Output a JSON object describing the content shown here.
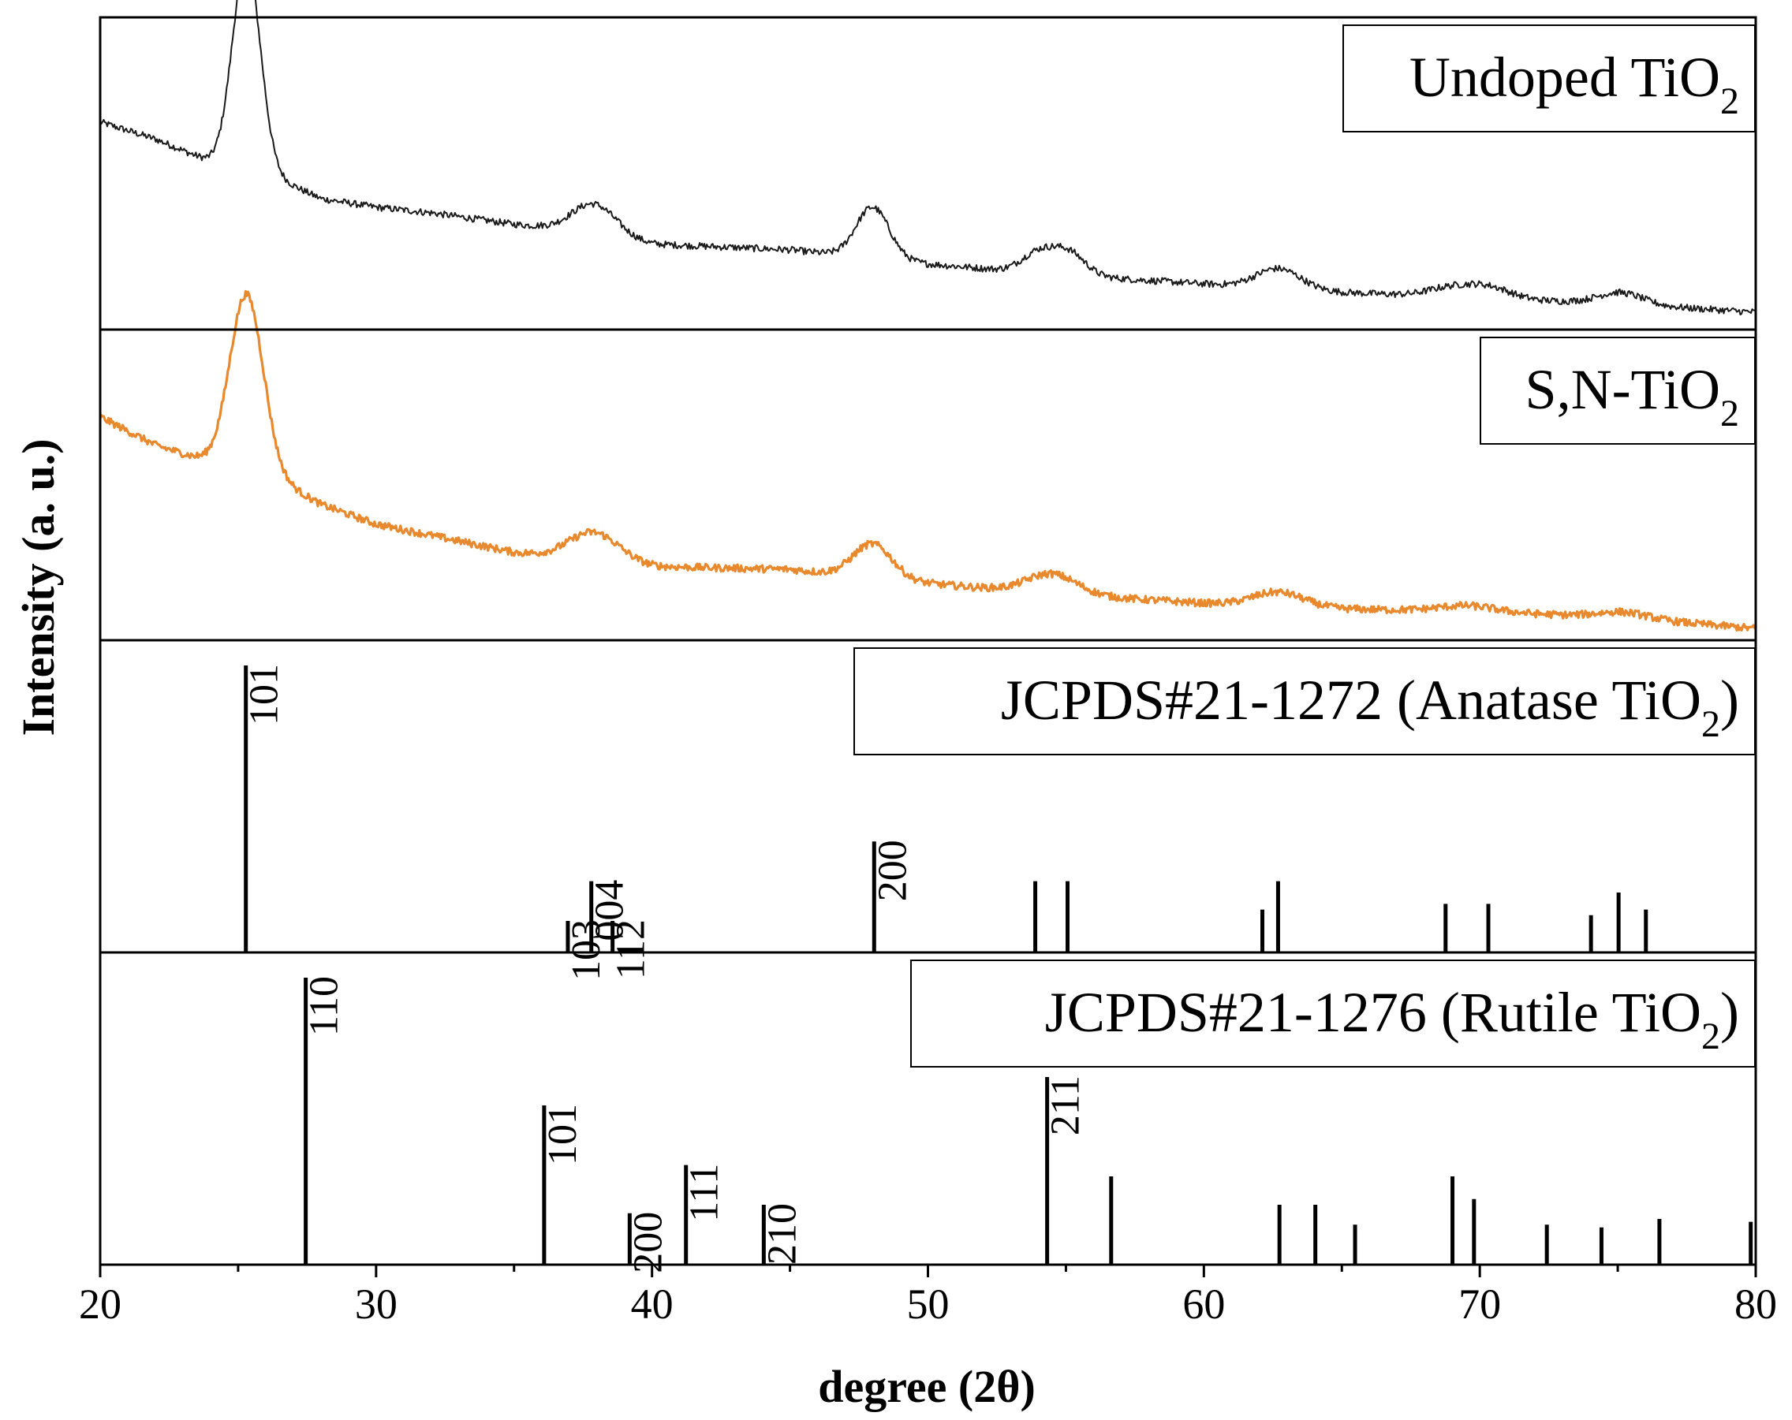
{
  "colors": {
    "undoped": "#1a1a1a",
    "sn": "#e8892e",
    "ref": "#000000"
  },
  "chart_data": {
    "type": "line",
    "xlabel": "degree (2θ)",
    "ylabel": "Intensity (a. u.)",
    "xlim": [
      20,
      80
    ],
    "xticks": [
      "20",
      "30",
      "40",
      "50",
      "60",
      "70",
      "80"
    ],
    "panels": [
      {
        "name": "Undoped TiO2",
        "legend": {
          "main": "Undoped TiO",
          "sub": "2",
          "suffix": ""
        },
        "kind": "pattern",
        "ylim": [
          0,
          100
        ],
        "baseline": {
          "x": [
            20,
            22,
            24,
            25,
            26,
            28,
            30,
            32,
            35,
            36,
            40,
            45,
            50,
            55,
            60,
            65,
            70,
            75,
            80
          ],
          "y": [
            72,
            66,
            58,
            56,
            54,
            45,
            42,
            40,
            36,
            35,
            29,
            27,
            22,
            18,
            15,
            12,
            10,
            8,
            5
          ]
        },
        "peaks": [
          {
            "x": 25.3,
            "h": 74,
            "w": 0.5
          },
          {
            "x": 37.9,
            "h": 11,
            "w": 0.8
          },
          {
            "x": 48.0,
            "h": 18,
            "w": 0.6
          },
          {
            "x": 54.0,
            "h": 7,
            "w": 0.6
          },
          {
            "x": 55.1,
            "h": 8,
            "w": 0.6
          },
          {
            "x": 62.7,
            "h": 7,
            "w": 0.8
          },
          {
            "x": 68.9,
            "h": 3,
            "w": 0.8
          },
          {
            "x": 70.3,
            "h": 4,
            "w": 0.8
          },
          {
            "x": 75.1,
            "h": 4,
            "w": 0.8
          }
        ],
        "noise": 1.2
      },
      {
        "name": "S,N-TiO2",
        "legend": {
          "main": "S,N-TiO",
          "sub": "2",
          "suffix": ""
        },
        "kind": "pattern",
        "ylim": [
          0,
          100
        ],
        "baseline": {
          "x": [
            20,
            22,
            24,
            25,
            26,
            28,
            30,
            32,
            35,
            36,
            40,
            45,
            50,
            55,
            60,
            65,
            70,
            75,
            80
          ],
          "y": [
            78,
            68,
            62,
            60,
            58,
            47,
            40,
            36,
            30,
            29,
            25,
            24,
            19,
            15,
            12,
            10,
            9,
            7,
            3
          ]
        },
        "peaks": [
          {
            "x": 25.3,
            "h": 62,
            "w": 0.6
          },
          {
            "x": 37.9,
            "h": 10,
            "w": 0.9
          },
          {
            "x": 48.0,
            "h": 12,
            "w": 0.7
          },
          {
            "x": 54.5,
            "h": 7,
            "w": 0.9
          },
          {
            "x": 62.7,
            "h": 5,
            "w": 0.9
          },
          {
            "x": 69.5,
            "h": 2,
            "w": 1.0
          },
          {
            "x": 75.2,
            "h": 2,
            "w": 0.9
          }
        ],
        "noise": 1.3
      },
      {
        "name": "JCPDS#21-1272 (Anatase TiO2)",
        "legend": {
          "main": "JCPDS#21-1272 (Anatase TiO",
          "sub": "2",
          "suffix": ")"
        },
        "kind": "sticks",
        "ylim": [
          0,
          100
        ],
        "sticks": [
          {
            "x": 25.28,
            "y": 100,
            "label": "101"
          },
          {
            "x": 36.95,
            "y": 10,
            "label": "103"
          },
          {
            "x": 37.8,
            "y": 24,
            "label": "004"
          },
          {
            "x": 38.57,
            "y": 10,
            "label": "112"
          },
          {
            "x": 48.05,
            "y": 38,
            "label": "200"
          },
          {
            "x": 53.89,
            "y": 24
          },
          {
            "x": 55.06,
            "y": 24
          },
          {
            "x": 62.12,
            "y": 14
          },
          {
            "x": 62.69,
            "y": 24
          },
          {
            "x": 68.76,
            "y": 16
          },
          {
            "x": 70.31,
            "y": 16
          },
          {
            "x": 74.03,
            "y": 12
          },
          {
            "x": 75.03,
            "y": 20
          },
          {
            "x": 76.02,
            "y": 14
          }
        ]
      },
      {
        "name": "JCPDS#21-1276 (Rutile TiO2)",
        "legend": {
          "main": "JCPDS#21-1276 (Rutile TiO",
          "sub": "2",
          "suffix": ")"
        },
        "kind": "sticks",
        "ylim": [
          0,
          100
        ],
        "sticks": [
          {
            "x": 27.45,
            "y": 100,
            "label": "110"
          },
          {
            "x": 36.09,
            "y": 55,
            "label": "101"
          },
          {
            "x": 39.19,
            "y": 17,
            "label": "200"
          },
          {
            "x": 41.23,
            "y": 34,
            "label": "111"
          },
          {
            "x": 44.05,
            "y": 20,
            "label": "210"
          },
          {
            "x": 54.32,
            "y": 65,
            "label": "211"
          },
          {
            "x": 56.64,
            "y": 30
          },
          {
            "x": 62.74,
            "y": 20
          },
          {
            "x": 64.04,
            "y": 20
          },
          {
            "x": 65.48,
            "y": 13
          },
          {
            "x": 69.01,
            "y": 30
          },
          {
            "x": 69.79,
            "y": 22
          },
          {
            "x": 72.43,
            "y": 13
          },
          {
            "x": 74.41,
            "y": 12
          },
          {
            "x": 76.51,
            "y": 15
          },
          {
            "x": 79.82,
            "y": 14
          }
        ]
      }
    ]
  }
}
